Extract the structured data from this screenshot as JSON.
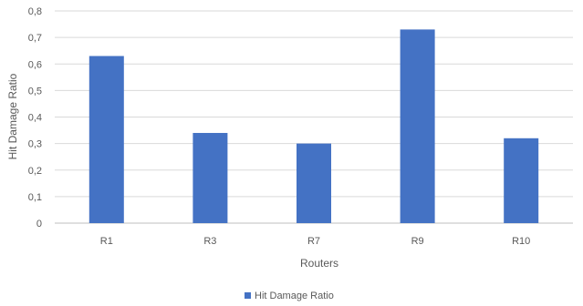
{
  "chart_data": {
    "type": "bar",
    "categories": [
      "R1",
      "R3",
      "R7",
      "R9",
      "R10"
    ],
    "series": [
      {
        "name": "Hit Damage Ratio",
        "values": [
          0.63,
          0.34,
          0.3,
          0.73,
          0.32
        ],
        "color": "#4472C4"
      }
    ],
    "xlabel": "Routers",
    "ylabel": "Hit Damage Ratio",
    "ylim": [
      0,
      0.8
    ],
    "yticks": [
      "0",
      "0,1",
      "0,2",
      "0,3",
      "0,4",
      "0,5",
      "0,6",
      "0,7",
      "0,8"
    ],
    "grid": true,
    "legend_position": "bottom"
  }
}
